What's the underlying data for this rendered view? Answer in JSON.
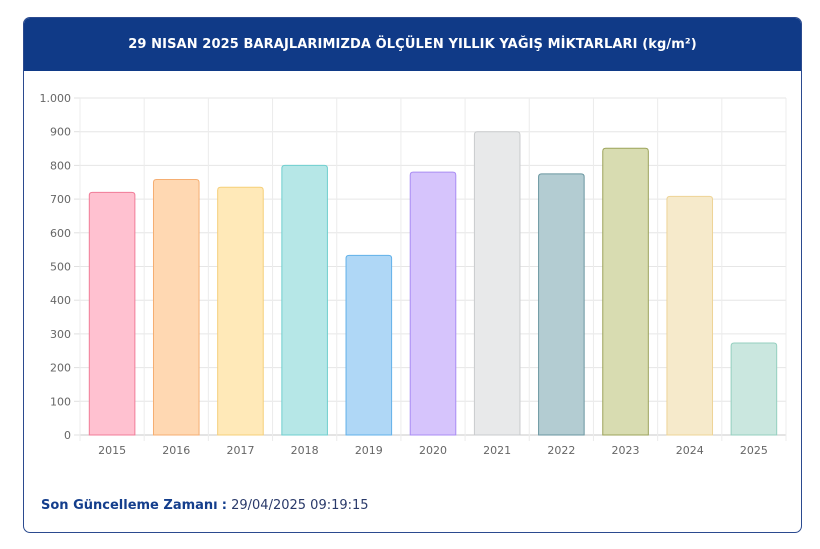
{
  "header": {
    "title": "29 NISAN 2025 BARAJLARIMIZDA ÖLÇÜLEN YILLIK YAĞIŞ MİKTARLARI (kg/m²)"
  },
  "footer": {
    "label": "Son Güncelleme Zamanı",
    "separator": ":",
    "value": "29/04/2025 09:19:15"
  },
  "chart_data": {
    "type": "bar",
    "categories": [
      "2015",
      "2016",
      "2017",
      "2018",
      "2019",
      "2020",
      "2021",
      "2022",
      "2023",
      "2024",
      "2025"
    ],
    "values": [
      720,
      758,
      735,
      800,
      533,
      780,
      900,
      775,
      851,
      708,
      273
    ],
    "ylim": [
      0,
      1000
    ],
    "yticks": [
      0,
      100,
      200,
      300,
      400,
      500,
      600,
      700,
      800,
      900,
      1000
    ],
    "ytick_labels": [
      "0",
      "100",
      "200",
      "300",
      "400",
      "500",
      "600",
      "700",
      "800",
      "900",
      "1.000"
    ],
    "grid": true,
    "legend": "none",
    "colors": {
      "fills": [
        "#ffc1d0",
        "#ffd8b2",
        "#ffe9b8",
        "#b6e7e7",
        "#afd7f6",
        "#d6c4fc",
        "#e8e9ea",
        "#b3ccd2",
        "#d8dcb1",
        "#f6eacb",
        "#cae7df"
      ],
      "strokes": [
        "#f07c98",
        "#f5ae72",
        "#f5cf79",
        "#6fcfcf",
        "#62b1e9",
        "#a98cf3",
        "#c9cbcd",
        "#6a96a0",
        "#9ca35a",
        "#eed497",
        "#94cfbf"
      ]
    }
  }
}
